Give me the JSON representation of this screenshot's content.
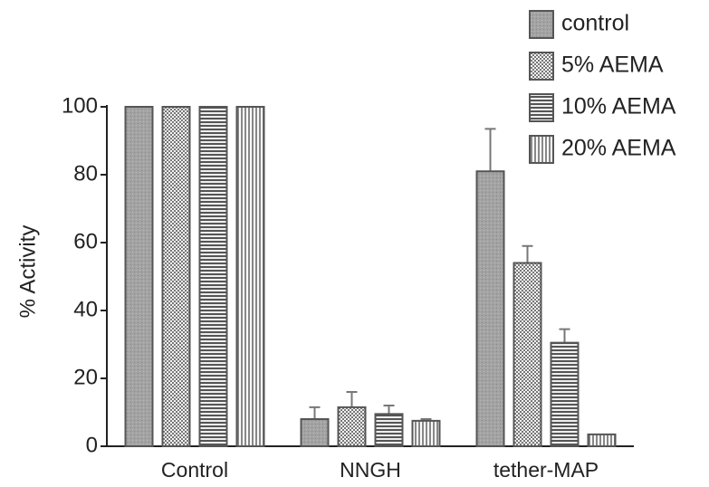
{
  "chart_data": {
    "type": "bar",
    "ylabel": "% Activity",
    "categories": [
      "Control",
      "NNGH",
      "tether-MAP"
    ],
    "series": [
      {
        "name": "control",
        "color": "#a3a3a3",
        "pattern": "dots",
        "values": [
          100,
          8,
          81
        ],
        "errors": [
          null,
          3.5,
          12.5
        ]
      },
      {
        "name": "5% AEMA",
        "color": "#d4d4d4",
        "pattern": "check",
        "values": [
          100,
          11.5,
          54
        ],
        "errors": [
          null,
          4.5,
          5
        ]
      },
      {
        "name": "10% AEMA",
        "color": "#7a7a7a",
        "pattern": "hstripe",
        "values": [
          100,
          9.5,
          30.5
        ],
        "errors": [
          null,
          2.5,
          4
        ]
      },
      {
        "name": "20% AEMA",
        "color": "#cfcfcf",
        "pattern": "vstripe",
        "values": [
          100,
          7.5,
          3.5
        ],
        "errors": [
          null,
          0.5,
          null
        ]
      }
    ],
    "ylim": [
      0,
      100
    ],
    "yticks": [
      0,
      20,
      40,
      60,
      80,
      100
    ],
    "legend": "top-right"
  }
}
